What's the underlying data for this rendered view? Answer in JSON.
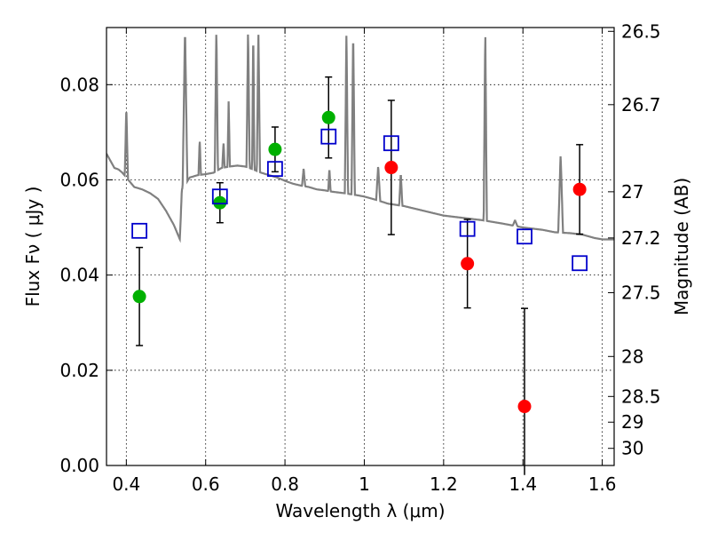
{
  "chart_data": {
    "type": "scatter",
    "xlabel": "Wavelength  λ (μm)",
    "ylabel": "Flux  Fν  ( μJy )",
    "ylabel_right": "Magnitude (AB)",
    "xlim": [
      0.35,
      1.63
    ],
    "ylim": [
      0.0,
      0.092
    ],
    "grid": true,
    "x_ticks": [
      0.4,
      0.6,
      0.8,
      1.0,
      1.2,
      1.4,
      1.6
    ],
    "x_tick_labels": [
      "0.4",
      "0.6",
      "0.8",
      "1",
      "1.2",
      "1.4",
      "1.6"
    ],
    "y_ticks": [
      0.0,
      0.02,
      0.04,
      0.06,
      0.08
    ],
    "y_tick_labels": [
      "0.00",
      "0.02",
      "0.04",
      "0.06",
      "0.08"
    ],
    "right_ticks": [
      {
        "label": "26.5",
        "flux": 0.0912
      },
      {
        "label": "26.7",
        "flux": 0.0758
      },
      {
        "label": "27",
        "flux": 0.0575
      },
      {
        "label": "27.2",
        "flux": 0.0478
      },
      {
        "label": "27.5",
        "flux": 0.0363
      },
      {
        "label": "28",
        "flux": 0.0229
      },
      {
        "label": "28.5",
        "flux": 0.0145
      },
      {
        "label": "29",
        "flux": 0.0091
      },
      {
        "label": "30",
        "flux": 0.0036
      }
    ],
    "series": [
      {
        "marker": "circle",
        "color": "#00b000",
        "points": [
          {
            "x": 0.433,
            "y": 0.0355,
            "err": 0.0103
          },
          {
            "x": 0.636,
            "y": 0.0552,
            "err": 0.0042
          },
          {
            "x": 0.775,
            "y": 0.0664,
            "err": 0.0047
          },
          {
            "x": 0.91,
            "y": 0.0731,
            "err": 0.0085
          }
        ]
      },
      {
        "marker": "circle",
        "color": "#ff0000",
        "points": [
          {
            "x": 1.068,
            "y": 0.0626,
            "err": 0.0141
          },
          {
            "x": 1.26,
            "y": 0.0424,
            "err": 0.0093
          },
          {
            "x": 1.404,
            "y": 0.0124,
            "err": 0.0206
          },
          {
            "x": 1.543,
            "y": 0.058,
            "err": 0.0094
          }
        ]
      },
      {
        "marker": "open-square",
        "color": "#0000cc",
        "points": [
          {
            "x": 0.433,
            "y": 0.0493
          },
          {
            "x": 0.636,
            "y": 0.0565
          },
          {
            "x": 0.775,
            "y": 0.0623
          },
          {
            "x": 0.91,
            "y": 0.0691
          },
          {
            "x": 1.068,
            "y": 0.0677
          },
          {
            "x": 1.26,
            "y": 0.0497
          },
          {
            "x": 1.404,
            "y": 0.0481
          },
          {
            "x": 1.543,
            "y": 0.0425
          }
        ]
      }
    ],
    "model_spectrum": {
      "color": "#808080",
      "continuum": [
        [
          0.35,
          0.0655
        ],
        [
          0.36,
          0.064
        ],
        [
          0.37,
          0.0625
        ],
        [
          0.38,
          0.0622
        ],
        [
          0.39,
          0.0615
        ],
        [
          0.4,
          0.0605
        ],
        [
          0.41,
          0.0595
        ],
        [
          0.42,
          0.0585
        ],
        [
          0.44,
          0.058
        ],
        [
          0.46,
          0.0572
        ],
        [
          0.48,
          0.056
        ],
        [
          0.5,
          0.0535
        ],
        [
          0.52,
          0.0505
        ],
        [
          0.53,
          0.0485
        ],
        [
          0.535,
          0.0475
        ],
        [
          0.54,
          0.058
        ],
        [
          0.56,
          0.0605
        ],
        [
          0.58,
          0.061
        ],
        [
          0.6,
          0.0612
        ],
        [
          0.62,
          0.0615
        ],
        [
          0.64,
          0.0625
        ],
        [
          0.66,
          0.0628
        ],
        [
          0.68,
          0.063
        ],
        [
          0.7,
          0.0628
        ],
        [
          0.72,
          0.0622
        ],
        [
          0.74,
          0.0615
        ],
        [
          0.76,
          0.061
        ],
        [
          0.78,
          0.0605
        ],
        [
          0.8,
          0.0598
        ],
        [
          0.82,
          0.0592
        ],
        [
          0.84,
          0.0588
        ],
        [
          0.86,
          0.0585
        ],
        [
          0.88,
          0.058
        ],
        [
          0.9,
          0.0578
        ],
        [
          0.92,
          0.0575
        ],
        [
          0.95,
          0.0572
        ],
        [
          0.98,
          0.0568
        ],
        [
          1.0,
          0.0565
        ],
        [
          1.03,
          0.0558
        ],
        [
          1.06,
          0.055
        ],
        [
          1.1,
          0.0545
        ],
        [
          1.15,
          0.0535
        ],
        [
          1.2,
          0.0525
        ],
        [
          1.25,
          0.052
        ],
        [
          1.3,
          0.0515
        ],
        [
          1.35,
          0.0508
        ],
        [
          1.4,
          0.05
        ],
        [
          1.45,
          0.0495
        ],
        [
          1.48,
          0.049
        ],
        [
          1.52,
          0.0488
        ],
        [
          1.55,
          0.0485
        ],
        [
          1.58,
          0.0478
        ],
        [
          1.6,
          0.0475
        ],
        [
          1.63,
          0.0475
        ]
      ],
      "emission_lines": [
        {
          "x": 0.4,
          "peak": 0.0755,
          "width": 0.004
        },
        {
          "x": 0.548,
          "peak": 0.092,
          "width": 0.006
        },
        {
          "x": 0.585,
          "peak": 0.0685,
          "width": 0.003
        },
        {
          "x": 0.627,
          "peak": 0.092,
          "width": 0.004
        },
        {
          "x": 0.645,
          "peak": 0.068,
          "width": 0.003
        },
        {
          "x": 0.658,
          "peak": 0.0765,
          "width": 0.003
        },
        {
          "x": 0.707,
          "peak": 0.092,
          "width": 0.004
        },
        {
          "x": 0.72,
          "peak": 0.092,
          "width": 0.003
        },
        {
          "x": 0.733,
          "peak": 0.092,
          "width": 0.004
        },
        {
          "x": 0.847,
          "peak": 0.0625,
          "width": 0.004
        },
        {
          "x": 0.912,
          "peak": 0.0625,
          "width": 0.003
        },
        {
          "x": 0.955,
          "peak": 0.092,
          "width": 0.004
        },
        {
          "x": 0.972,
          "peak": 0.092,
          "width": 0.004
        },
        {
          "x": 1.035,
          "peak": 0.063,
          "width": 0.005
        },
        {
          "x": 1.092,
          "peak": 0.0615,
          "width": 0.004
        },
        {
          "x": 1.305,
          "peak": 0.092,
          "width": 0.004
        },
        {
          "x": 1.38,
          "peak": 0.0515,
          "width": 0.006
        },
        {
          "x": 1.495,
          "peak": 0.0655,
          "width": 0.006
        }
      ]
    }
  }
}
